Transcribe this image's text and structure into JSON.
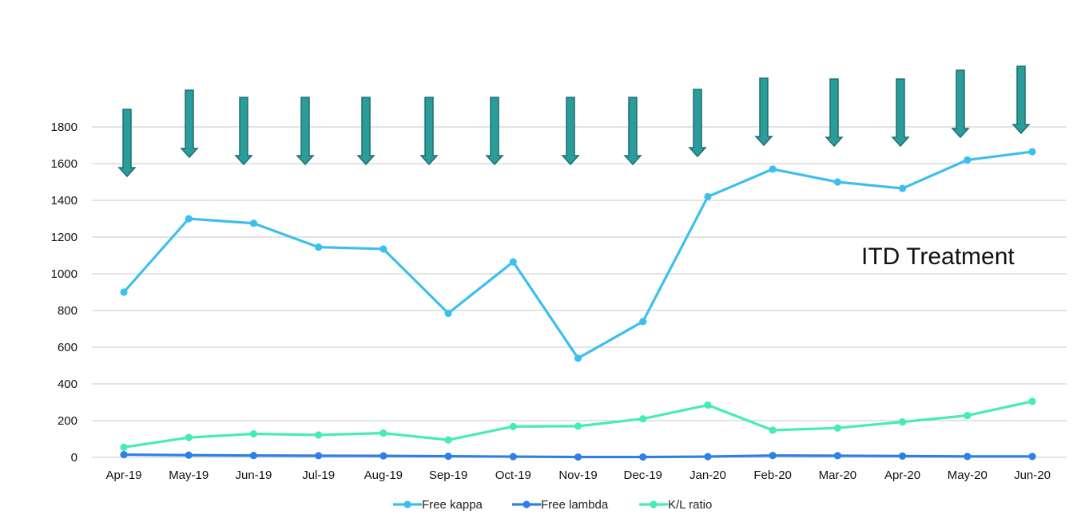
{
  "chart_data": {
    "type": "line",
    "title": "",
    "xlabel": "",
    "ylabel": "",
    "categories": [
      "Apr-19",
      "May-19",
      "Jun-19",
      "Jul-19",
      "Aug-19",
      "Sep-19",
      "Oct-19",
      "Nov-19",
      "Dec-19",
      "Jan-20",
      "Feb-20",
      "Mar-20",
      "Apr-20",
      "May-20",
      "Jun-20"
    ],
    "ylim": [
      0,
      1800
    ],
    "yticks": [
      0,
      200,
      400,
      600,
      800,
      1000,
      1200,
      1400,
      1600,
      1800
    ],
    "grid": true,
    "legend_position": "bottom",
    "series": [
      {
        "name": "Free kappa",
        "color": "#3dbfee",
        "values": [
          900,
          1300,
          1275,
          1145,
          1135,
          785,
          1065,
          540,
          740,
          1420,
          1570,
          1500,
          1465,
          1620,
          1665
        ]
      },
      {
        "name": "Free lambda",
        "color": "#2f7fe6",
        "values": [
          15,
          12,
          10,
          9,
          8,
          6,
          4,
          2,
          2,
          4,
          10,
          9,
          7,
          5,
          5
        ]
      },
      {
        "name": "K/L ratio",
        "color": "#47ecb2",
        "values": [
          55,
          108,
          128,
          122,
          132,
          95,
          168,
          170,
          210,
          285,
          148,
          160,
          193,
          228,
          305
        ]
      }
    ],
    "annotations": [
      {
        "text": "ITD Treatment",
        "kind": "text"
      },
      {
        "kind": "treatment-arrows",
        "color": "#2a9d9a",
        "count": 15
      }
    ]
  }
}
